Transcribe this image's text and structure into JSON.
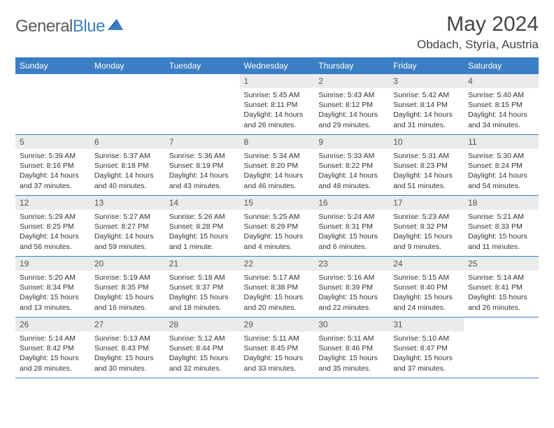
{
  "logo": {
    "word1": "General",
    "word2": "Blue"
  },
  "title": "May 2024",
  "location": "Obdach, Styria, Austria",
  "colors": {
    "header_bg": "#3a7fc4",
    "header_text": "#ffffff",
    "daynum_bg": "#e9eceb",
    "border": "#3a7fc4",
    "text": "#333333"
  },
  "dayHeaders": [
    "Sunday",
    "Monday",
    "Tuesday",
    "Wednesday",
    "Thursday",
    "Friday",
    "Saturday"
  ],
  "weeks": [
    [
      {
        "n": "",
        "lines": []
      },
      {
        "n": "",
        "lines": []
      },
      {
        "n": "",
        "lines": []
      },
      {
        "n": "1",
        "lines": [
          "Sunrise: 5:45 AM",
          "Sunset: 8:11 PM",
          "Daylight: 14 hours",
          "and 26 minutes."
        ]
      },
      {
        "n": "2",
        "lines": [
          "Sunrise: 5:43 AM",
          "Sunset: 8:12 PM",
          "Daylight: 14 hours",
          "and 29 minutes."
        ]
      },
      {
        "n": "3",
        "lines": [
          "Sunrise: 5:42 AM",
          "Sunset: 8:14 PM",
          "Daylight: 14 hours",
          "and 31 minutes."
        ]
      },
      {
        "n": "4",
        "lines": [
          "Sunrise: 5:40 AM",
          "Sunset: 8:15 PM",
          "Daylight: 14 hours",
          "and 34 minutes."
        ]
      }
    ],
    [
      {
        "n": "5",
        "lines": [
          "Sunrise: 5:39 AM",
          "Sunset: 8:16 PM",
          "Daylight: 14 hours",
          "and 37 minutes."
        ]
      },
      {
        "n": "6",
        "lines": [
          "Sunrise: 5:37 AM",
          "Sunset: 8:18 PM",
          "Daylight: 14 hours",
          "and 40 minutes."
        ]
      },
      {
        "n": "7",
        "lines": [
          "Sunrise: 5:36 AM",
          "Sunset: 8:19 PM",
          "Daylight: 14 hours",
          "and 43 minutes."
        ]
      },
      {
        "n": "8",
        "lines": [
          "Sunrise: 5:34 AM",
          "Sunset: 8:20 PM",
          "Daylight: 14 hours",
          "and 46 minutes."
        ]
      },
      {
        "n": "9",
        "lines": [
          "Sunrise: 5:33 AM",
          "Sunset: 8:22 PM",
          "Daylight: 14 hours",
          "and 48 minutes."
        ]
      },
      {
        "n": "10",
        "lines": [
          "Sunrise: 5:31 AM",
          "Sunset: 8:23 PM",
          "Daylight: 14 hours",
          "and 51 minutes."
        ]
      },
      {
        "n": "11",
        "lines": [
          "Sunrise: 5:30 AM",
          "Sunset: 8:24 PM",
          "Daylight: 14 hours",
          "and 54 minutes."
        ]
      }
    ],
    [
      {
        "n": "12",
        "lines": [
          "Sunrise: 5:29 AM",
          "Sunset: 8:25 PM",
          "Daylight: 14 hours",
          "and 56 minutes."
        ]
      },
      {
        "n": "13",
        "lines": [
          "Sunrise: 5:27 AM",
          "Sunset: 8:27 PM",
          "Daylight: 14 hours",
          "and 59 minutes."
        ]
      },
      {
        "n": "14",
        "lines": [
          "Sunrise: 5:26 AM",
          "Sunset: 8:28 PM",
          "Daylight: 15 hours",
          "and 1 minute."
        ]
      },
      {
        "n": "15",
        "lines": [
          "Sunrise: 5:25 AM",
          "Sunset: 8:29 PM",
          "Daylight: 15 hours",
          "and 4 minutes."
        ]
      },
      {
        "n": "16",
        "lines": [
          "Sunrise: 5:24 AM",
          "Sunset: 8:31 PM",
          "Daylight: 15 hours",
          "and 6 minutes."
        ]
      },
      {
        "n": "17",
        "lines": [
          "Sunrise: 5:23 AM",
          "Sunset: 8:32 PM",
          "Daylight: 15 hours",
          "and 9 minutes."
        ]
      },
      {
        "n": "18",
        "lines": [
          "Sunrise: 5:21 AM",
          "Sunset: 8:33 PM",
          "Daylight: 15 hours",
          "and 11 minutes."
        ]
      }
    ],
    [
      {
        "n": "19",
        "lines": [
          "Sunrise: 5:20 AM",
          "Sunset: 8:34 PM",
          "Daylight: 15 hours",
          "and 13 minutes."
        ]
      },
      {
        "n": "20",
        "lines": [
          "Sunrise: 5:19 AM",
          "Sunset: 8:35 PM",
          "Daylight: 15 hours",
          "and 16 minutes."
        ]
      },
      {
        "n": "21",
        "lines": [
          "Sunrise: 5:18 AM",
          "Sunset: 8:37 PM",
          "Daylight: 15 hours",
          "and 18 minutes."
        ]
      },
      {
        "n": "22",
        "lines": [
          "Sunrise: 5:17 AM",
          "Sunset: 8:38 PM",
          "Daylight: 15 hours",
          "and 20 minutes."
        ]
      },
      {
        "n": "23",
        "lines": [
          "Sunrise: 5:16 AM",
          "Sunset: 8:39 PM",
          "Daylight: 15 hours",
          "and 22 minutes."
        ]
      },
      {
        "n": "24",
        "lines": [
          "Sunrise: 5:15 AM",
          "Sunset: 8:40 PM",
          "Daylight: 15 hours",
          "and 24 minutes."
        ]
      },
      {
        "n": "25",
        "lines": [
          "Sunrise: 5:14 AM",
          "Sunset: 8:41 PM",
          "Daylight: 15 hours",
          "and 26 minutes."
        ]
      }
    ],
    [
      {
        "n": "26",
        "lines": [
          "Sunrise: 5:14 AM",
          "Sunset: 8:42 PM",
          "Daylight: 15 hours",
          "and 28 minutes."
        ]
      },
      {
        "n": "27",
        "lines": [
          "Sunrise: 5:13 AM",
          "Sunset: 8:43 PM",
          "Daylight: 15 hours",
          "and 30 minutes."
        ]
      },
      {
        "n": "28",
        "lines": [
          "Sunrise: 5:12 AM",
          "Sunset: 8:44 PM",
          "Daylight: 15 hours",
          "and 32 minutes."
        ]
      },
      {
        "n": "29",
        "lines": [
          "Sunrise: 5:11 AM",
          "Sunset: 8:45 PM",
          "Daylight: 15 hours",
          "and 33 minutes."
        ]
      },
      {
        "n": "30",
        "lines": [
          "Sunrise: 5:11 AM",
          "Sunset: 8:46 PM",
          "Daylight: 15 hours",
          "and 35 minutes."
        ]
      },
      {
        "n": "31",
        "lines": [
          "Sunrise: 5:10 AM",
          "Sunset: 8:47 PM",
          "Daylight: 15 hours",
          "and 37 minutes."
        ]
      },
      {
        "n": "",
        "lines": []
      }
    ]
  ]
}
